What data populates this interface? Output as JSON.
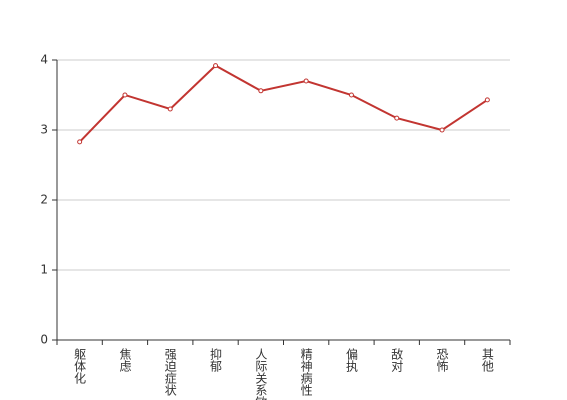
{
  "chart_data": {
    "type": "line",
    "categories": [
      "躯体化",
      "焦虑",
      "强迫症状",
      "抑郁",
      "人际关系敏感",
      "精神病性",
      "偏执",
      "敌对",
      "恐怖",
      "其他"
    ],
    "series": [
      {
        "color": "#c23531",
        "values": [
          2.83,
          3.5,
          3.3,
          3.92,
          3.56,
          3.7,
          3.5,
          3.17,
          3.0,
          3.43
        ]
      }
    ],
    "ylim": [
      0,
      4
    ],
    "yticks": [
      0,
      1,
      2,
      3,
      4
    ],
    "grid": true
  }
}
